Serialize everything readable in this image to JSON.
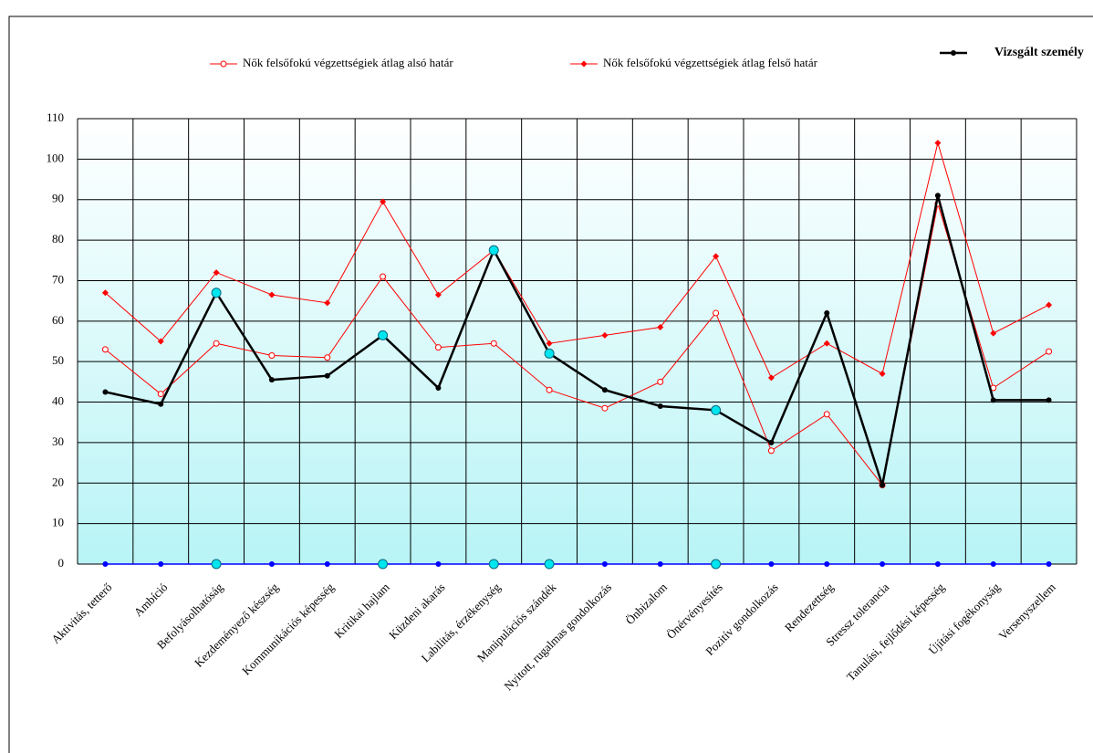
{
  "chart_data": {
    "type": "line",
    "categories": [
      "Aktivitás, tetterő",
      "Ambíció",
      "Befolyásolhatóság",
      "Kezdeményező készség",
      "Kommunikációs képesség",
      "Kritikai hajlam",
      "Küzdeni akarás",
      "Labilitás, érzékenység",
      "Manipulációs szándék",
      "Nyitott, rugalmas gondolkozás",
      "Önbizalom",
      "Önérvényesítés",
      "Pozitív gondolkozás",
      "Rendezettség",
      "Stressz tolerancia",
      "Tanulási, fejlődési képesség",
      "Újítási fogékonyság",
      "Versenyszellem"
    ],
    "category_colors": [
      "#000033",
      "#000033",
      "#000033",
      "#000033",
      "#000033",
      "#808080",
      "#000033",
      "#000033",
      "#000033",
      "#000033",
      "#000033",
      "#000033",
      "#000033",
      "#000033",
      "#808080",
      "#000033",
      "#000033",
      "#808080"
    ],
    "series": [
      {
        "name": "Nők felsőfokú végzettségiek átlag alsó határ",
        "color": "#ff0000",
        "marker": "open",
        "width": 1,
        "values": [
          53,
          42,
          54.5,
          51.5,
          51,
          71,
          53.5,
          54.5,
          43,
          38.5,
          45,
          62,
          28,
          37,
          19.5,
          89,
          43.5,
          52.5
        ]
      },
      {
        "name": "Nők felsőfokú végzettségiek átlag felső határ",
        "color": "#ff0000",
        "marker": "diamond",
        "width": 1,
        "values": [
          67,
          55,
          72,
          66.5,
          64.5,
          89.5,
          66.5,
          77.5,
          54.5,
          56.5,
          58.5,
          76,
          46,
          54.5,
          47,
          104,
          57,
          64
        ]
      },
      {
        "name": "Vizsgált személy",
        "color": "#000000",
        "marker": "dot",
        "width": 2.5,
        "values": [
          42.5,
          39.5,
          67,
          45.5,
          46.5,
          56.5,
          43.5,
          77.5,
          52,
          43,
          39,
          38,
          30,
          62,
          19.5,
          91,
          40.5,
          40.5
        ]
      },
      {
        "color": "#0000ff",
        "marker": "dot",
        "width": 1.5,
        "values": [
          0,
          0,
          0,
          0,
          0,
          0,
          0,
          0,
          0,
          0,
          0,
          0,
          0,
          0,
          0,
          0,
          0,
          0
        ]
      }
    ],
    "highlighted": [
      2,
      5,
      7,
      8,
      11
    ],
    "highlight_color": "#00e5ee",
    "ylim": [
      0,
      110
    ],
    "yticks": [
      0,
      10,
      20,
      30,
      40,
      50,
      60,
      70,
      80,
      90,
      100,
      110
    ],
    "grid": true
  }
}
